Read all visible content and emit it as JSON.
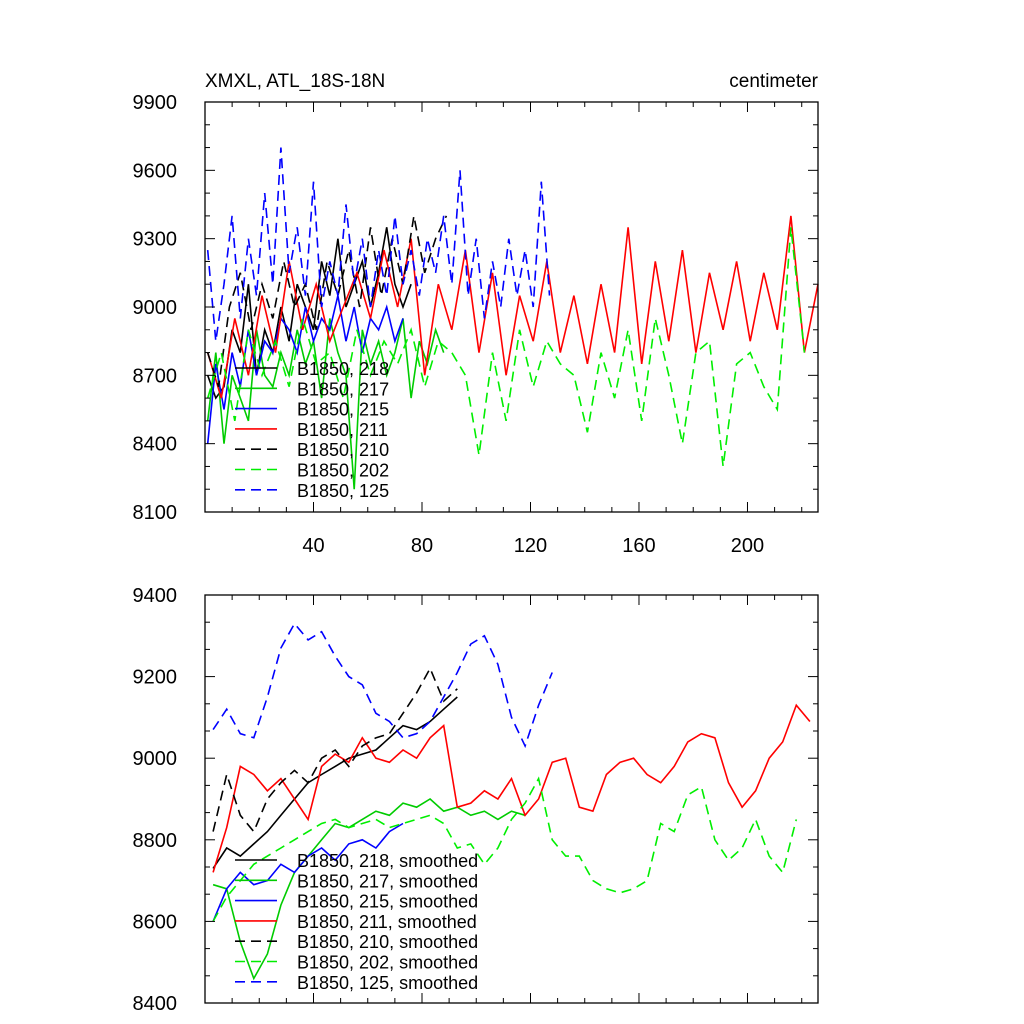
{
  "header": {
    "title": "XMXL, ATL_18S-18N",
    "units": "centimeter"
  },
  "chart_data": [
    {
      "type": "line",
      "xlim": [
        0,
        226
      ],
      "ylim": [
        8100,
        9900
      ],
      "xticks": [
        40,
        80,
        120,
        160,
        200
      ],
      "yticks": [
        8100,
        8400,
        8700,
        9000,
        9300,
        9600,
        9900
      ],
      "grid": false,
      "legend_position": "bottom-left",
      "series": [
        {
          "name": "B1850, 218",
          "color": "#000000",
          "dash": "solid",
          "x": [
            1,
            4,
            7,
            10,
            13,
            16,
            19,
            22,
            25,
            28,
            31,
            34,
            37,
            40,
            43,
            46,
            49,
            52,
            55,
            58,
            61,
            64,
            67,
            70,
            73,
            76
          ],
          "values": [
            8700,
            8600,
            8650,
            8900,
            8800,
            9100,
            8700,
            8900,
            8800,
            9000,
            8850,
            9100,
            9000,
            8900,
            9200,
            9050,
            9300,
            9000,
            9100,
            9200,
            9000,
            9150,
            9350,
            9100,
            9000,
            9100
          ]
        },
        {
          "name": "B1850, 217",
          "color": "#00cc00",
          "dash": "solid",
          "x": [
            1,
            4,
            7,
            10,
            13,
            16,
            19,
            22,
            25,
            28,
            31,
            34,
            37,
            40,
            43,
            46,
            49,
            52,
            55,
            58,
            61,
            64,
            67,
            70,
            73,
            76,
            79,
            82,
            85,
            88
          ],
          "values": [
            8500,
            8800,
            8400,
            8700,
            8600,
            8500,
            8900,
            8700,
            8650,
            8800,
            8700,
            8900,
            8750,
            8850,
            8600,
            8950,
            8800,
            8700,
            8200,
            8900,
            8750,
            8850,
            8700,
            8800,
            8950,
            8600,
            8850,
            8750,
            8900,
            8800
          ]
        },
        {
          "name": "B1850, 215",
          "color": "#0000ff",
          "dash": "solid",
          "x": [
            1,
            4,
            7,
            10,
            13,
            16,
            19,
            22,
            25,
            28,
            31,
            34,
            37,
            40,
            43,
            46,
            49,
            52,
            55,
            58,
            61,
            64,
            67,
            70,
            73
          ],
          "values": [
            8400,
            8750,
            8550,
            8800,
            8650,
            8900,
            8700,
            8850,
            8800,
            8950,
            8900,
            8800,
            9000,
            8850,
            8950,
            8900,
            9050,
            8850,
            9000,
            8800,
            8950,
            8900,
            9000,
            8850,
            8950
          ]
        },
        {
          "name": "B1850, 211",
          "color": "#ff0000",
          "dash": "solid",
          "x": [
            1,
            6,
            11,
            16,
            21,
            26,
            31,
            36,
            41,
            46,
            51,
            56,
            61,
            66,
            71,
            76,
            81,
            86,
            91,
            96,
            101,
            106,
            111,
            116,
            121,
            126,
            131,
            136,
            141,
            146,
            151,
            156,
            161,
            166,
            171,
            176,
            181,
            186,
            191,
            196,
            201,
            206,
            211,
            216,
            221,
            226
          ],
          "values": [
            8800,
            8600,
            8950,
            8700,
            9050,
            8800,
            9200,
            8900,
            9100,
            8850,
            9000,
            9150,
            8950,
            9250,
            9000,
            9300,
            8700,
            9100,
            8900,
            9250,
            8800,
            9150,
            8700,
            9050,
            8850,
            9200,
            8800,
            9050,
            8750,
            9100,
            8800,
            9350,
            8750,
            9200,
            8850,
            9250,
            8800,
            9150,
            8900,
            9200,
            8850,
            9150,
            8900,
            9400,
            8800,
            9100
          ]
        },
        {
          "name": "B1850, 210",
          "color": "#000000",
          "dash": "dash",
          "x": [
            1,
            5,
            9,
            13,
            17,
            21,
            25,
            29,
            33,
            37,
            41,
            45,
            49,
            53,
            57,
            61,
            65,
            69,
            73,
            77,
            81,
            85,
            89
          ],
          "values": [
            8800,
            8650,
            9000,
            9150,
            8900,
            9100,
            8950,
            9200,
            9000,
            9100,
            8900,
            9200,
            9050,
            9250,
            9000,
            9350,
            9050,
            9300,
            9100,
            9400,
            9150,
            9300,
            9400
          ]
        },
        {
          "name": "B1850, 202",
          "color": "#00ee00",
          "dash": "dash",
          "x": [
            1,
            6,
            11,
            16,
            21,
            26,
            31,
            36,
            41,
            46,
            51,
            56,
            61,
            66,
            71,
            76,
            81,
            86,
            91,
            96,
            101,
            106,
            111,
            116,
            121,
            126,
            131,
            136,
            141,
            146,
            151,
            156,
            161,
            166,
            171,
            176,
            181,
            186,
            191,
            196,
            201,
            206,
            211,
            216,
            221
          ],
          "values": [
            8600,
            8800,
            8500,
            8900,
            8700,
            8850,
            8650,
            8950,
            8750,
            8800,
            8600,
            8900,
            8700,
            8850,
            8750,
            8900,
            8650,
            8850,
            8800,
            8700,
            8350,
            8800,
            8500,
            8900,
            8650,
            8850,
            8750,
            8700,
            8450,
            8800,
            8600,
            8900,
            8500,
            8950,
            8700,
            8400,
            8800,
            8850,
            8300,
            8750,
            8800,
            8650,
            8550,
            9350,
            8800
          ]
        },
        {
          "name": "B1850, 125",
          "color": "#0000ff",
          "dash": "dash",
          "x": [
            1,
            4,
            7,
            10,
            13,
            16,
            19,
            22,
            25,
            28,
            31,
            34,
            37,
            40,
            43,
            46,
            49,
            52,
            55,
            58,
            61,
            64,
            67,
            70,
            73,
            76,
            79,
            82,
            85,
            88,
            91,
            94,
            97,
            100,
            103,
            106,
            109,
            112,
            115,
            118,
            121,
            124,
            127
          ],
          "values": [
            9250,
            8850,
            9100,
            9400,
            8950,
            9300,
            9050,
            9500,
            9100,
            9700,
            9150,
            9350,
            9050,
            9550,
            9000,
            9200,
            9050,
            9450,
            9100,
            9300,
            9000,
            9250,
            9050,
            9400,
            9100,
            9250,
            9050,
            9300,
            9150,
            9400,
            9100,
            9600,
            9050,
            9300,
            8950,
            9200,
            9000,
            9300,
            9050,
            9250,
            9000,
            9550,
            9050
          ]
        }
      ]
    },
    {
      "type": "line",
      "xlim": [
        0,
        226
      ],
      "ylim": [
        8400,
        9400
      ],
      "yticks": [
        8400,
        8600,
        8800,
        9000,
        9200,
        9400
      ],
      "grid": false,
      "legend_position": "bottom-left",
      "series": [
        {
          "name": "B1850, 218, smoothed",
          "color": "#000000",
          "dash": "solid",
          "x": [
            3,
            8,
            13,
            18,
            23,
            28,
            33,
            38,
            43,
            48,
            53,
            58,
            63,
            68,
            73,
            78,
            83,
            88,
            93
          ],
          "values": [
            8730,
            8780,
            8760,
            8790,
            8820,
            8860,
            8900,
            8940,
            8960,
            8980,
            9000,
            9010,
            9020,
            9050,
            9080,
            9070,
            9090,
            9120,
            9150
          ]
        },
        {
          "name": "B1850, 217, smoothed",
          "color": "#00cc00",
          "dash": "solid",
          "x": [
            3,
            8,
            13,
            18,
            23,
            28,
            33,
            38,
            43,
            48,
            53,
            58,
            63,
            68,
            73,
            78,
            83,
            88,
            93,
            98,
            103,
            108,
            113,
            118
          ],
          "values": [
            8690,
            8680,
            8550,
            8460,
            8520,
            8640,
            8720,
            8760,
            8800,
            8840,
            8830,
            8850,
            8870,
            8860,
            8890,
            8880,
            8900,
            8870,
            8880,
            8860,
            8870,
            8850,
            8870,
            8860
          ]
        },
        {
          "name": "B1850, 215, smoothed",
          "color": "#0000ff",
          "dash": "solid",
          "x": [
            3,
            8,
            13,
            18,
            23,
            28,
            33,
            38,
            43,
            48,
            53,
            58,
            63,
            68,
            73
          ],
          "values": [
            8600,
            8680,
            8720,
            8690,
            8700,
            8740,
            8720,
            8760,
            8780,
            8750,
            8790,
            8800,
            8780,
            8820,
            8840
          ]
        },
        {
          "name": "B1850, 211, smoothed",
          "color": "#ff0000",
          "dash": "solid",
          "x": [
            3,
            8,
            13,
            18,
            23,
            28,
            33,
            38,
            43,
            48,
            53,
            58,
            63,
            68,
            73,
            78,
            83,
            88,
            93,
            98,
            103,
            108,
            113,
            118,
            123,
            128,
            133,
            138,
            143,
            148,
            153,
            158,
            163,
            168,
            173,
            178,
            183,
            188,
            193,
            198,
            203,
            208,
            213,
            218,
            223
          ],
          "values": [
            8720,
            8830,
            8980,
            8960,
            8920,
            8950,
            8900,
            8850,
            8980,
            9010,
            8990,
            9050,
            9000,
            8990,
            9020,
            9000,
            9050,
            9080,
            8880,
            8890,
            8920,
            8900,
            8950,
            8860,
            8900,
            8990,
            9000,
            8880,
            8870,
            8960,
            8990,
            9000,
            8960,
            8940,
            8980,
            9040,
            9060,
            9050,
            8940,
            8880,
            8920,
            9000,
            9040,
            9130,
            9090
          ]
        },
        {
          "name": "B1850, 210, smoothed",
          "color": "#000000",
          "dash": "dash",
          "x": [
            3,
            8,
            13,
            18,
            23,
            28,
            33,
            38,
            43,
            48,
            53,
            58,
            63,
            68,
            73,
            78,
            83,
            88,
            93
          ],
          "values": [
            8820,
            8960,
            8860,
            8820,
            8900,
            8940,
            8970,
            8940,
            9000,
            9020,
            8980,
            9030,
            9050,
            9060,
            9110,
            9160,
            9220,
            9140,
            9170
          ]
        },
        {
          "name": "B1850, 202, smoothed",
          "color": "#00ee00",
          "dash": "dash",
          "x": [
            3,
            8,
            13,
            18,
            23,
            28,
            33,
            38,
            43,
            48,
            53,
            58,
            63,
            68,
            73,
            78,
            83,
            88,
            93,
            98,
            103,
            108,
            113,
            118,
            123,
            128,
            133,
            138,
            143,
            148,
            153,
            158,
            163,
            168,
            173,
            178,
            183,
            188,
            193,
            198,
            203,
            208,
            213,
            218
          ],
          "values": [
            8600,
            8660,
            8700,
            8740,
            8760,
            8780,
            8800,
            8820,
            8840,
            8850,
            8830,
            8840,
            8850,
            8830,
            8840,
            8850,
            8860,
            8840,
            8780,
            8790,
            8740,
            8780,
            8850,
            8890,
            8950,
            8800,
            8760,
            8760,
            8700,
            8680,
            8670,
            8680,
            8700,
            8840,
            8820,
            8910,
            8930,
            8800,
            8750,
            8780,
            8850,
            8760,
            8720,
            8850
          ]
        },
        {
          "name": "B1850, 125, smoothed",
          "color": "#0000ff",
          "dash": "dash",
          "x": [
            3,
            8,
            13,
            18,
            23,
            28,
            33,
            38,
            43,
            48,
            53,
            58,
            63,
            68,
            73,
            78,
            83,
            88,
            93,
            98,
            103,
            108,
            113,
            118,
            123,
            128
          ],
          "values": [
            9070,
            9120,
            9060,
            9050,
            9150,
            9270,
            9330,
            9290,
            9310,
            9250,
            9200,
            9180,
            9110,
            9090,
            9050,
            9060,
            9090,
            9150,
            9210,
            9280,
            9300,
            9230,
            9100,
            9030,
            9130,
            9210
          ]
        }
      ]
    }
  ]
}
